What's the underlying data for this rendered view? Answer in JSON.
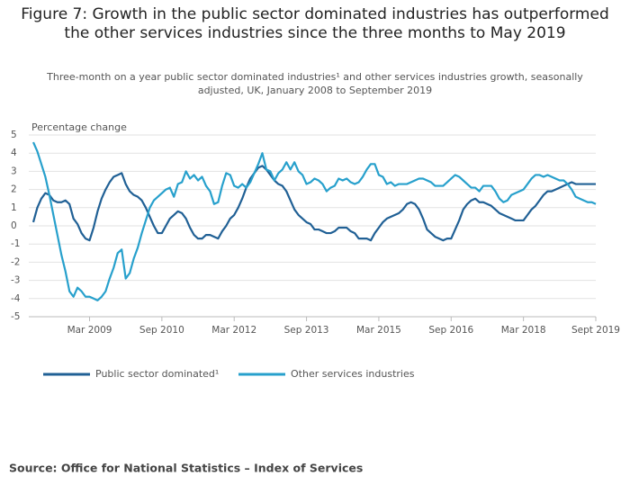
{
  "chart_data": {
    "type": "line",
    "title": "Figure 7: Growth in the public sector dominated industries has outperformed the other services industries since the three months to May 2019",
    "subtitle": "Three-month on a year public sector dominated industries¹ and other services industries growth, seasonally adjusted, UK, January 2008 to September 2019",
    "y_label": "Percentage change",
    "source": "Source: Office for National Statistics – Index of Services",
    "categories": [
      null,
      null,
      null,
      null,
      null,
      null,
      null,
      null,
      null,
      null,
      null,
      null,
      null,
      null,
      "Mar 2009",
      null,
      null,
      null,
      null,
      null,
      null,
      null,
      null,
      null,
      null,
      null,
      null,
      null,
      null,
      null,
      null,
      null,
      "Sep 2010",
      null,
      null,
      null,
      null,
      null,
      null,
      null,
      null,
      null,
      null,
      null,
      null,
      null,
      null,
      null,
      null,
      null,
      "Mar 2012",
      null,
      null,
      null,
      null,
      null,
      null,
      null,
      null,
      null,
      null,
      null,
      null,
      null,
      null,
      null,
      null,
      null,
      "Sep 2013",
      null,
      null,
      null,
      null,
      null,
      null,
      null,
      null,
      null,
      null,
      null,
      null,
      null,
      null,
      null,
      null,
      null,
      "Mar 2015",
      null,
      null,
      null,
      null,
      null,
      null,
      null,
      null,
      null,
      null,
      null,
      null,
      null,
      null,
      null,
      null,
      null,
      "Sep 2016",
      null,
      null,
      null,
      null,
      null,
      null,
      null,
      null,
      null,
      null,
      null,
      null,
      null,
      null,
      null,
      null,
      null,
      "Mar 2018",
      null,
      null,
      null,
      null,
      null,
      null,
      null,
      null,
      null,
      null,
      null,
      null,
      null,
      null,
      null,
      null,
      null,
      "Sept 2019"
    ],
    "series": [
      {
        "name": "Public sector dominated¹",
        "color": "#206095",
        "values": [
          0.2,
          1.0,
          1.5,
          1.8,
          1.7,
          1.4,
          1.3,
          1.3,
          1.4,
          1.2,
          0.4,
          0.1,
          -0.4,
          -0.7,
          -0.8,
          -0.1,
          0.8,
          1.5,
          2.0,
          2.4,
          2.7,
          2.8,
          2.9,
          2.3,
          1.9,
          1.7,
          1.6,
          1.4,
          1.0,
          0.5,
          0.0,
          -0.4,
          -0.4,
          0.0,
          0.4,
          0.6,
          0.8,
          0.7,
          0.4,
          -0.1,
          -0.5,
          -0.7,
          -0.7,
          -0.5,
          -0.5,
          -0.6,
          -0.7,
          -0.3,
          0.0,
          0.4,
          0.6,
          1.0,
          1.5,
          2.1,
          2.6,
          2.9,
          3.2,
          3.3,
          3.1,
          2.8,
          2.5,
          2.3,
          2.2,
          1.9,
          1.4,
          0.9,
          0.6,
          0.4,
          0.2,
          0.1,
          -0.2,
          -0.2,
          -0.3,
          -0.4,
          -0.4,
          -0.3,
          -0.1,
          -0.1,
          -0.1,
          -0.3,
          -0.4,
          -0.7,
          -0.7,
          -0.7,
          -0.8,
          -0.4,
          -0.1,
          0.2,
          0.4,
          0.5,
          0.6,
          0.7,
          0.9,
          1.2,
          1.3,
          1.2,
          0.9,
          0.4,
          -0.2,
          -0.4,
          -0.6,
          -0.7,
          -0.8,
          -0.7,
          -0.7,
          -0.2,
          0.3,
          0.9,
          1.2,
          1.4,
          1.5,
          1.3,
          1.3,
          1.2,
          1.1,
          0.9,
          0.7,
          0.6,
          0.5,
          0.4,
          0.3,
          0.3,
          0.3,
          0.6,
          0.9,
          1.1,
          1.4,
          1.7,
          1.9,
          1.9,
          2.0,
          2.1,
          2.2,
          2.3,
          2.4,
          2.3,
          2.3,
          2.3,
          2.3,
          2.3,
          2.3
        ]
      },
      {
        "name": "Other services industries",
        "color": "#27a0cc",
        "values": [
          4.6,
          4.1,
          3.4,
          2.7,
          1.7,
          0.6,
          -0.5,
          -1.6,
          -2.5,
          -3.6,
          -3.9,
          -3.4,
          -3.6,
          -3.9,
          -3.9,
          -4.0,
          -4.1,
          -3.9,
          -3.6,
          -2.9,
          -2.3,
          -1.5,
          -1.3,
          -2.9,
          -2.6,
          -1.8,
          -1.2,
          -0.4,
          0.3,
          1.0,
          1.4,
          1.6,
          1.8,
          2.0,
          2.1,
          1.6,
          2.3,
          2.4,
          3.0,
          2.6,
          2.8,
          2.5,
          2.7,
          2.2,
          1.9,
          1.2,
          1.3,
          2.2,
          2.9,
          2.8,
          2.2,
          2.1,
          2.3,
          2.1,
          2.4,
          2.9,
          3.4,
          4.0,
          3.1,
          3.0,
          2.5,
          2.9,
          3.1,
          3.5,
          3.1,
          3.5,
          3.0,
          2.8,
          2.3,
          2.4,
          2.6,
          2.5,
          2.3,
          1.9,
          2.1,
          2.2,
          2.6,
          2.5,
          2.6,
          2.4,
          2.3,
          2.4,
          2.7,
          3.1,
          3.4,
          3.4,
          2.8,
          2.7,
          2.3,
          2.4,
          2.2,
          2.3,
          2.3,
          2.3,
          2.4,
          2.5,
          2.6,
          2.6,
          2.5,
          2.4,
          2.2,
          2.2,
          2.2,
          2.4,
          2.6,
          2.8,
          2.7,
          2.5,
          2.3,
          2.1,
          2.1,
          1.9,
          2.2,
          2.2,
          2.2,
          1.9,
          1.5,
          1.3,
          1.4,
          1.7,
          1.8,
          1.9,
          2.0,
          2.3,
          2.6,
          2.8,
          2.8,
          2.7,
          2.8,
          2.7,
          2.6,
          2.5,
          2.5,
          2.3,
          2.0,
          1.6,
          1.5,
          1.4,
          1.3,
          1.3,
          1.2
        ]
      }
    ],
    "ylim": [
      -5,
      5
    ],
    "yticks": [
      -5,
      -4,
      -3,
      -2,
      -1,
      0,
      1,
      2,
      3,
      4,
      5
    ],
    "grid": true
  }
}
